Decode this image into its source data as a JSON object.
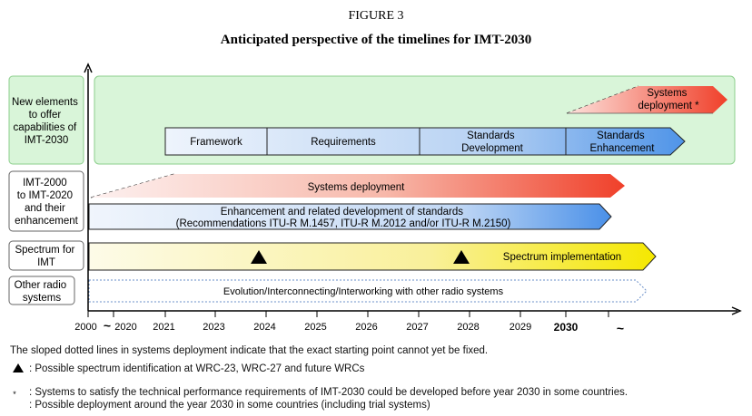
{
  "figure": {
    "label": "FIGURE 3",
    "title": "Anticipated perspective of the timelines for IMT-2030"
  },
  "rows": [
    {
      "line1": "New elements",
      "line2": "to offer",
      "line3": "capabilities of",
      "line4": "IMT-2030"
    },
    {
      "line1": "IMT-2000",
      "line2": "to IMT-2020",
      "line3": "and their",
      "line4": "enhancement"
    },
    {
      "line1": "Spectrum for",
      "line2": "IMT"
    },
    {
      "line1": "Other radio",
      "line2": "systems"
    }
  ],
  "imt2030": {
    "systems_deployment_line1": "Systems",
    "systems_deployment_line2": "deployment *",
    "phases": [
      {
        "label1": "Framework",
        "label2": ""
      },
      {
        "label1": "Requirements",
        "label2": ""
      },
      {
        "label1": "Standards",
        "label2": "Development"
      },
      {
        "label1": "Standards",
        "label2": "Enhancement"
      }
    ]
  },
  "imt2020": {
    "systems_deployment": "Systems deployment",
    "enhancement_line1": "Enhancement and related development of standards",
    "enhancement_line2": "(Recommendations ITU-R M.1457, ITU-R M.2012 and/or ITU-R M.2150)"
  },
  "spectrum": {
    "implementation": "Spectrum implementation"
  },
  "other": {
    "label": "Evolution/Interconnecting/Interworking with other radio systems"
  },
  "axis": {
    "ticks": [
      "2000",
      "2020",
      "2021",
      "2023",
      "2024",
      "2025",
      "2026",
      "2027",
      "2028",
      "2029",
      "2030"
    ],
    "tilde": "~"
  },
  "notes": {
    "dotted_line_note": "The sloped dotted lines in systems deployment indicate that the exact starting point cannot yet be fixed.",
    "triangle_note": ": Possible spectrum identification at WRC-23, WRC-27 and future WRCs",
    "asterisk_symbol": "*",
    "asterisk_note_line1": ": Systems to satisfy the technical performance requirements of IMT-2030 could be developed before year 2030 in some countries.",
    "asterisk_note_line2": ": Possible deployment around the year 2030 in some countries (including trial systems)"
  },
  "colors": {
    "green_fill": "#d9f5d9",
    "green_border": "#8ccf8c",
    "blue_arrow": "#4f94e8",
    "red_arrow": "#f04a2e",
    "yellow_arrow": "#f5ea00"
  }
}
